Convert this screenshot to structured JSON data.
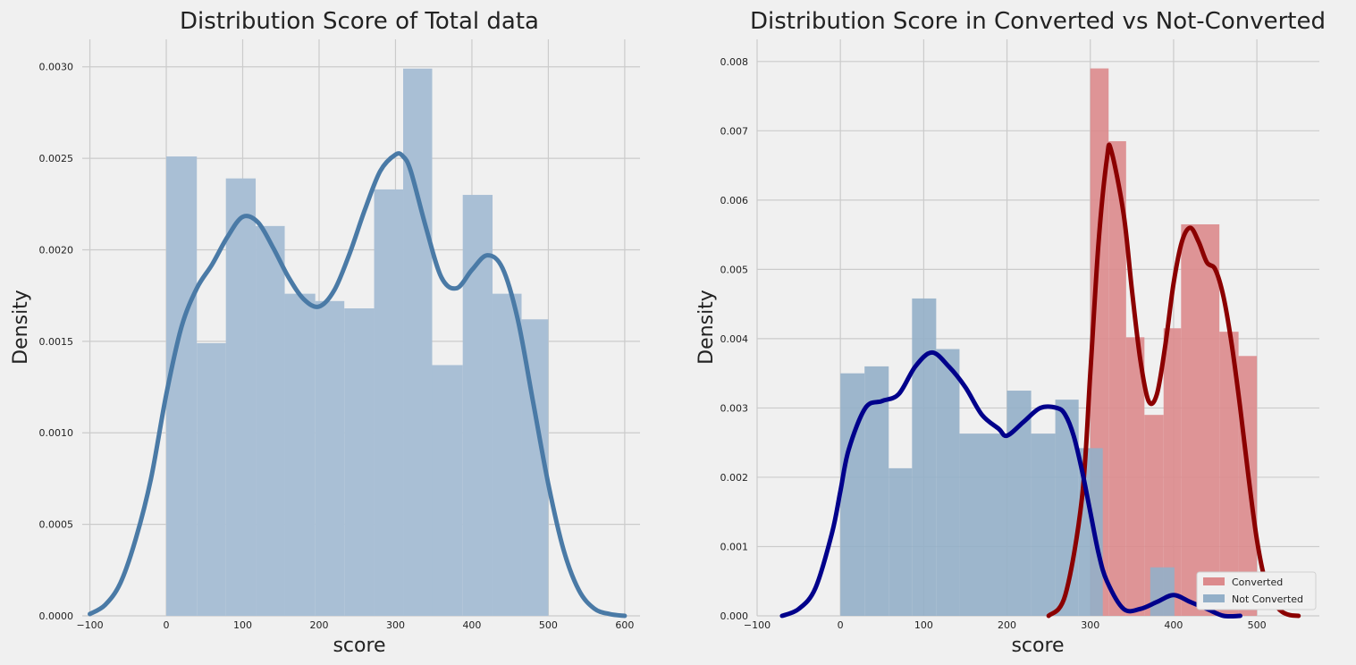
{
  "colors": {
    "background": "#f0f0f0",
    "grid": "#cbcbcb",
    "total_hist": "#a9bfd5",
    "total_kde": "#4a7aa6",
    "converted_hist": "#dc8a8c",
    "converted_kde": "#8b0000",
    "notconverted_hist": "#93afc8",
    "notconverted_kde": "#00008b"
  },
  "chart_data": [
    {
      "type": "histogram+kde",
      "title": "Distribution Score of Total data",
      "xlabel": "score",
      "ylabel": "Density",
      "xlim": [
        -110,
        620
      ],
      "ylim": [
        0,
        0.00315
      ],
      "xticks": [
        -100,
        0,
        100,
        200,
        300,
        400,
        500,
        600
      ],
      "xtick_labels": [
        "−100",
        "0",
        "100",
        "200",
        "300",
        "400",
        "500",
        "600"
      ],
      "yticks": [
        0,
        0.0005,
        0.001,
        0.0015,
        0.002,
        0.0025,
        0.003
      ],
      "ytick_labels": [
        "0.0000",
        "0.0005",
        "0.0010",
        "0.0015",
        "0.0020",
        "0.0025",
        "0.0030"
      ],
      "grid": true,
      "series": [
        {
          "kind": "hist",
          "color_key": "total_hist",
          "bins": [
            {
              "x0": 0,
              "x1": 40,
              "density": 0.00251
            },
            {
              "x0": 40,
              "x1": 78,
              "density": 0.00149
            },
            {
              "x0": 78,
              "x1": 117,
              "density": 0.00239
            },
            {
              "x0": 117,
              "x1": 155,
              "density": 0.00213
            },
            {
              "x0": 155,
              "x1": 195,
              "density": 0.00176
            },
            {
              "x0": 195,
              "x1": 233,
              "density": 0.00172
            },
            {
              "x0": 233,
              "x1": 272,
              "density": 0.00168
            },
            {
              "x0": 272,
              "x1": 310,
              "density": 0.00233
            },
            {
              "x0": 310,
              "x1": 348,
              "density": 0.00299
            },
            {
              "x0": 348,
              "x1": 388,
              "density": 0.00137
            },
            {
              "x0": 388,
              "x1": 427,
              "density": 0.0023
            },
            {
              "x0": 427,
              "x1": 465,
              "density": 0.00176
            },
            {
              "x0": 465,
              "x1": 500,
              "density": 0.00162
            }
          ]
        },
        {
          "kind": "kde",
          "color_key": "total_kde",
          "x": [
            -100,
            -80,
            -60,
            -40,
            -20,
            0,
            20,
            40,
            60,
            80,
            100,
            120,
            140,
            160,
            180,
            200,
            220,
            240,
            260,
            280,
            300,
            310,
            320,
            340,
            360,
            380,
            400,
            420,
            440,
            460,
            480,
            500,
            520,
            540,
            560,
            580,
            600
          ],
          "y": [
            1e-05,
            6e-05,
            0.00018,
            0.00042,
            0.00075,
            0.00121,
            0.00158,
            0.00179,
            0.00192,
            0.00207,
            0.00218,
            0.00215,
            0.00201,
            0.00185,
            0.00173,
            0.00169,
            0.00178,
            0.00198,
            0.00222,
            0.00243,
            0.00252,
            0.00251,
            0.00243,
            0.00212,
            0.00185,
            0.00179,
            0.00189,
            0.00197,
            0.0019,
            0.00162,
            0.00117,
            0.00072,
            0.00036,
            0.00014,
            4e-05,
            1e-05,
            0.0
          ]
        }
      ]
    },
    {
      "type": "histogram+kde",
      "title": "Distribution Score in Converted vs Not-Converted",
      "xlabel": "score",
      "ylabel": "Density",
      "xlim": [
        -100,
        575
      ],
      "ylim": [
        0,
        0.00832
      ],
      "xticks": [
        -100,
        0,
        100,
        200,
        300,
        400,
        500
      ],
      "xtick_labels": [
        "−100",
        "0",
        "100",
        "200",
        "300",
        "400",
        "500"
      ],
      "yticks": [
        0,
        0.001,
        0.002,
        0.003,
        0.004,
        0.005,
        0.006,
        0.007,
        0.008
      ],
      "ytick_labels": [
        "0.000",
        "0.001",
        "0.002",
        "0.003",
        "0.004",
        "0.005",
        "0.006",
        "0.007",
        "0.008"
      ],
      "grid": true,
      "legend": {
        "placement": "lower-right",
        "entries": [
          "Converted",
          "Not Converted"
        ]
      },
      "series": [
        {
          "kind": "hist",
          "name": "Converted",
          "color_key": "converted_hist",
          "bins": [
            {
              "x0": 300,
              "x1": 322,
              "density": 0.0079
            },
            {
              "x0": 322,
              "x1": 343,
              "density": 0.00685
            },
            {
              "x0": 343,
              "x1": 365,
              "density": 0.00402
            },
            {
              "x0": 365,
              "x1": 388,
              "density": 0.0029
            },
            {
              "x0": 388,
              "x1": 409,
              "density": 0.00415
            },
            {
              "x0": 409,
              "x1": 455,
              "density": 0.00565
            },
            {
              "x0": 455,
              "x1": 478,
              "density": 0.0041
            },
            {
              "x0": 478,
              "x1": 500,
              "density": 0.00375
            }
          ]
        },
        {
          "kind": "hist",
          "name": "Not Converted",
          "color_key": "notconverted_hist",
          "bins": [
            {
              "x0": 0,
              "x1": 29,
              "density": 0.0035
            },
            {
              "x0": 29,
              "x1": 58,
              "density": 0.0036
            },
            {
              "x0": 58,
              "x1": 86,
              "density": 0.00213
            },
            {
              "x0": 86,
              "x1": 115,
              "density": 0.00458
            },
            {
              "x0": 115,
              "x1": 143,
              "density": 0.00385
            },
            {
              "x0": 143,
              "x1": 200,
              "density": 0.00263
            },
            {
              "x0": 200,
              "x1": 229,
              "density": 0.00325
            },
            {
              "x0": 229,
              "x1": 258,
              "density": 0.00263
            },
            {
              "x0": 258,
              "x1": 286,
              "density": 0.00312
            },
            {
              "x0": 286,
              "x1": 315,
              "density": 0.00242
            },
            {
              "x0": 372,
              "x1": 401,
              "density": 0.0007
            }
          ]
        },
        {
          "kind": "kde",
          "name": "Converted",
          "color_key": "converted_kde",
          "x": [
            250,
            270,
            290,
            300,
            310,
            320,
            325,
            340,
            350,
            360,
            370,
            380,
            390,
            400,
            410,
            420,
            430,
            440,
            450,
            460,
            470,
            480,
            490,
            500,
            510,
            520,
            530,
            540,
            550
          ],
          "y": [
            0.0,
            0.0003,
            0.0017,
            0.0035,
            0.0054,
            0.0066,
            0.00672,
            0.0058,
            0.0047,
            0.0037,
            0.0031,
            0.0032,
            0.0039,
            0.0048,
            0.0054,
            0.0056,
            0.0054,
            0.0051,
            0.005,
            0.0046,
            0.0039,
            0.003,
            0.002,
            0.0011,
            0.0005,
            0.0002,
            6e-05,
            1e-05,
            0.0
          ]
        },
        {
          "kind": "kde",
          "name": "Not Converted",
          "color_key": "notconverted_kde",
          "x": [
            -70,
            -50,
            -30,
            -10,
            0,
            10,
            30,
            50,
            70,
            90,
            110,
            130,
            150,
            170,
            190,
            200,
            220,
            240,
            260,
            270,
            280,
            290,
            300,
            310,
            320,
            340,
            360,
            380,
            400,
            420,
            440,
            460,
            480
          ],
          "y": [
            0.0,
            0.0001,
            0.0004,
            0.0012,
            0.0018,
            0.0024,
            0.003,
            0.0031,
            0.0032,
            0.0036,
            0.0038,
            0.0036,
            0.0033,
            0.0029,
            0.0027,
            0.0026,
            0.0028,
            0.003,
            0.003,
            0.0029,
            0.0026,
            0.0021,
            0.0015,
            0.0009,
            0.0005,
            0.0001,
            0.0001,
            0.0002,
            0.0003,
            0.0002,
            0.0001,
            0.0,
            0.0
          ]
        }
      ]
    }
  ]
}
